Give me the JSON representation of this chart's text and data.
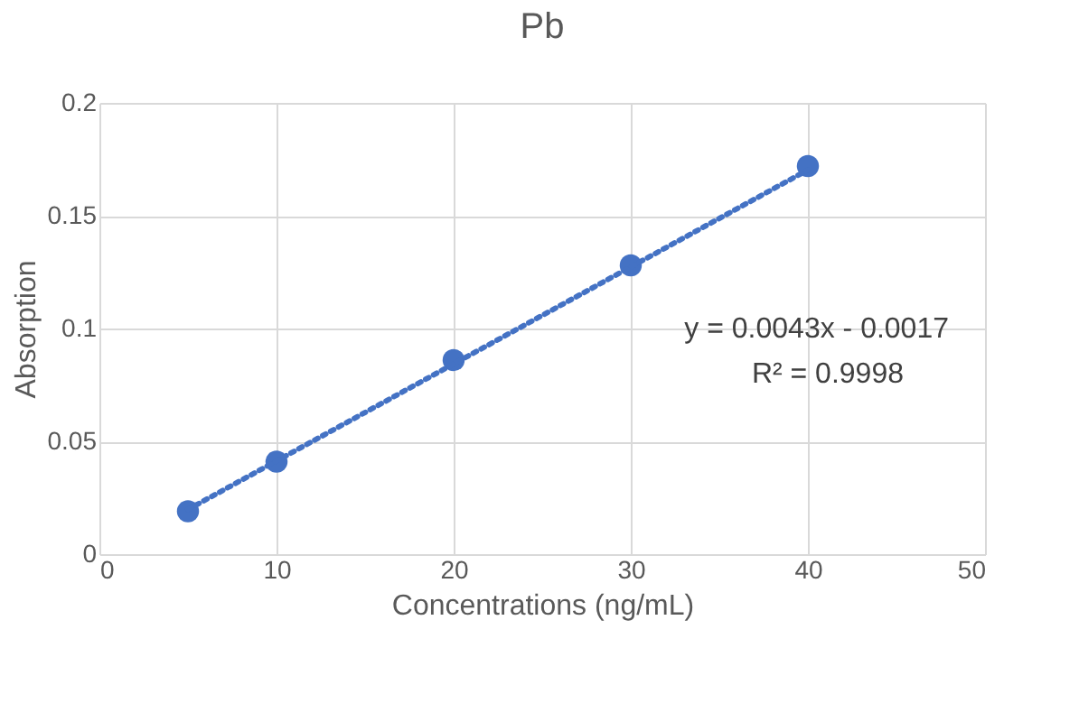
{
  "chart_data": {
    "type": "scatter",
    "title": "Pb",
    "xlabel": "Concentrations (ng/mL)",
    "ylabel": "Absorption",
    "x": [
      5,
      10,
      20,
      30,
      40
    ],
    "series": [
      {
        "color": "#4472c4",
        "values": [
          0.019,
          0.041,
          0.086,
          0.128,
          0.172
        ],
        "marker": "circle"
      },
      {
        "type": "line",
        "color": "#4472c4",
        "x": [
          5,
          40
        ],
        "values": [
          0.0198,
          0.1703
        ],
        "line_style": "dotted"
      }
    ],
    "xlim": [
      0,
      50
    ],
    "xticks": [
      0,
      10,
      20,
      30,
      40,
      50
    ],
    "ylim": [
      0,
      0.2
    ],
    "yticks": [
      0,
      0.05,
      0.1,
      0.15,
      0.2
    ],
    "grid": true,
    "annotations": [
      "y = 0.0043x - 0.0017",
      "R² = 0.9998"
    ]
  }
}
